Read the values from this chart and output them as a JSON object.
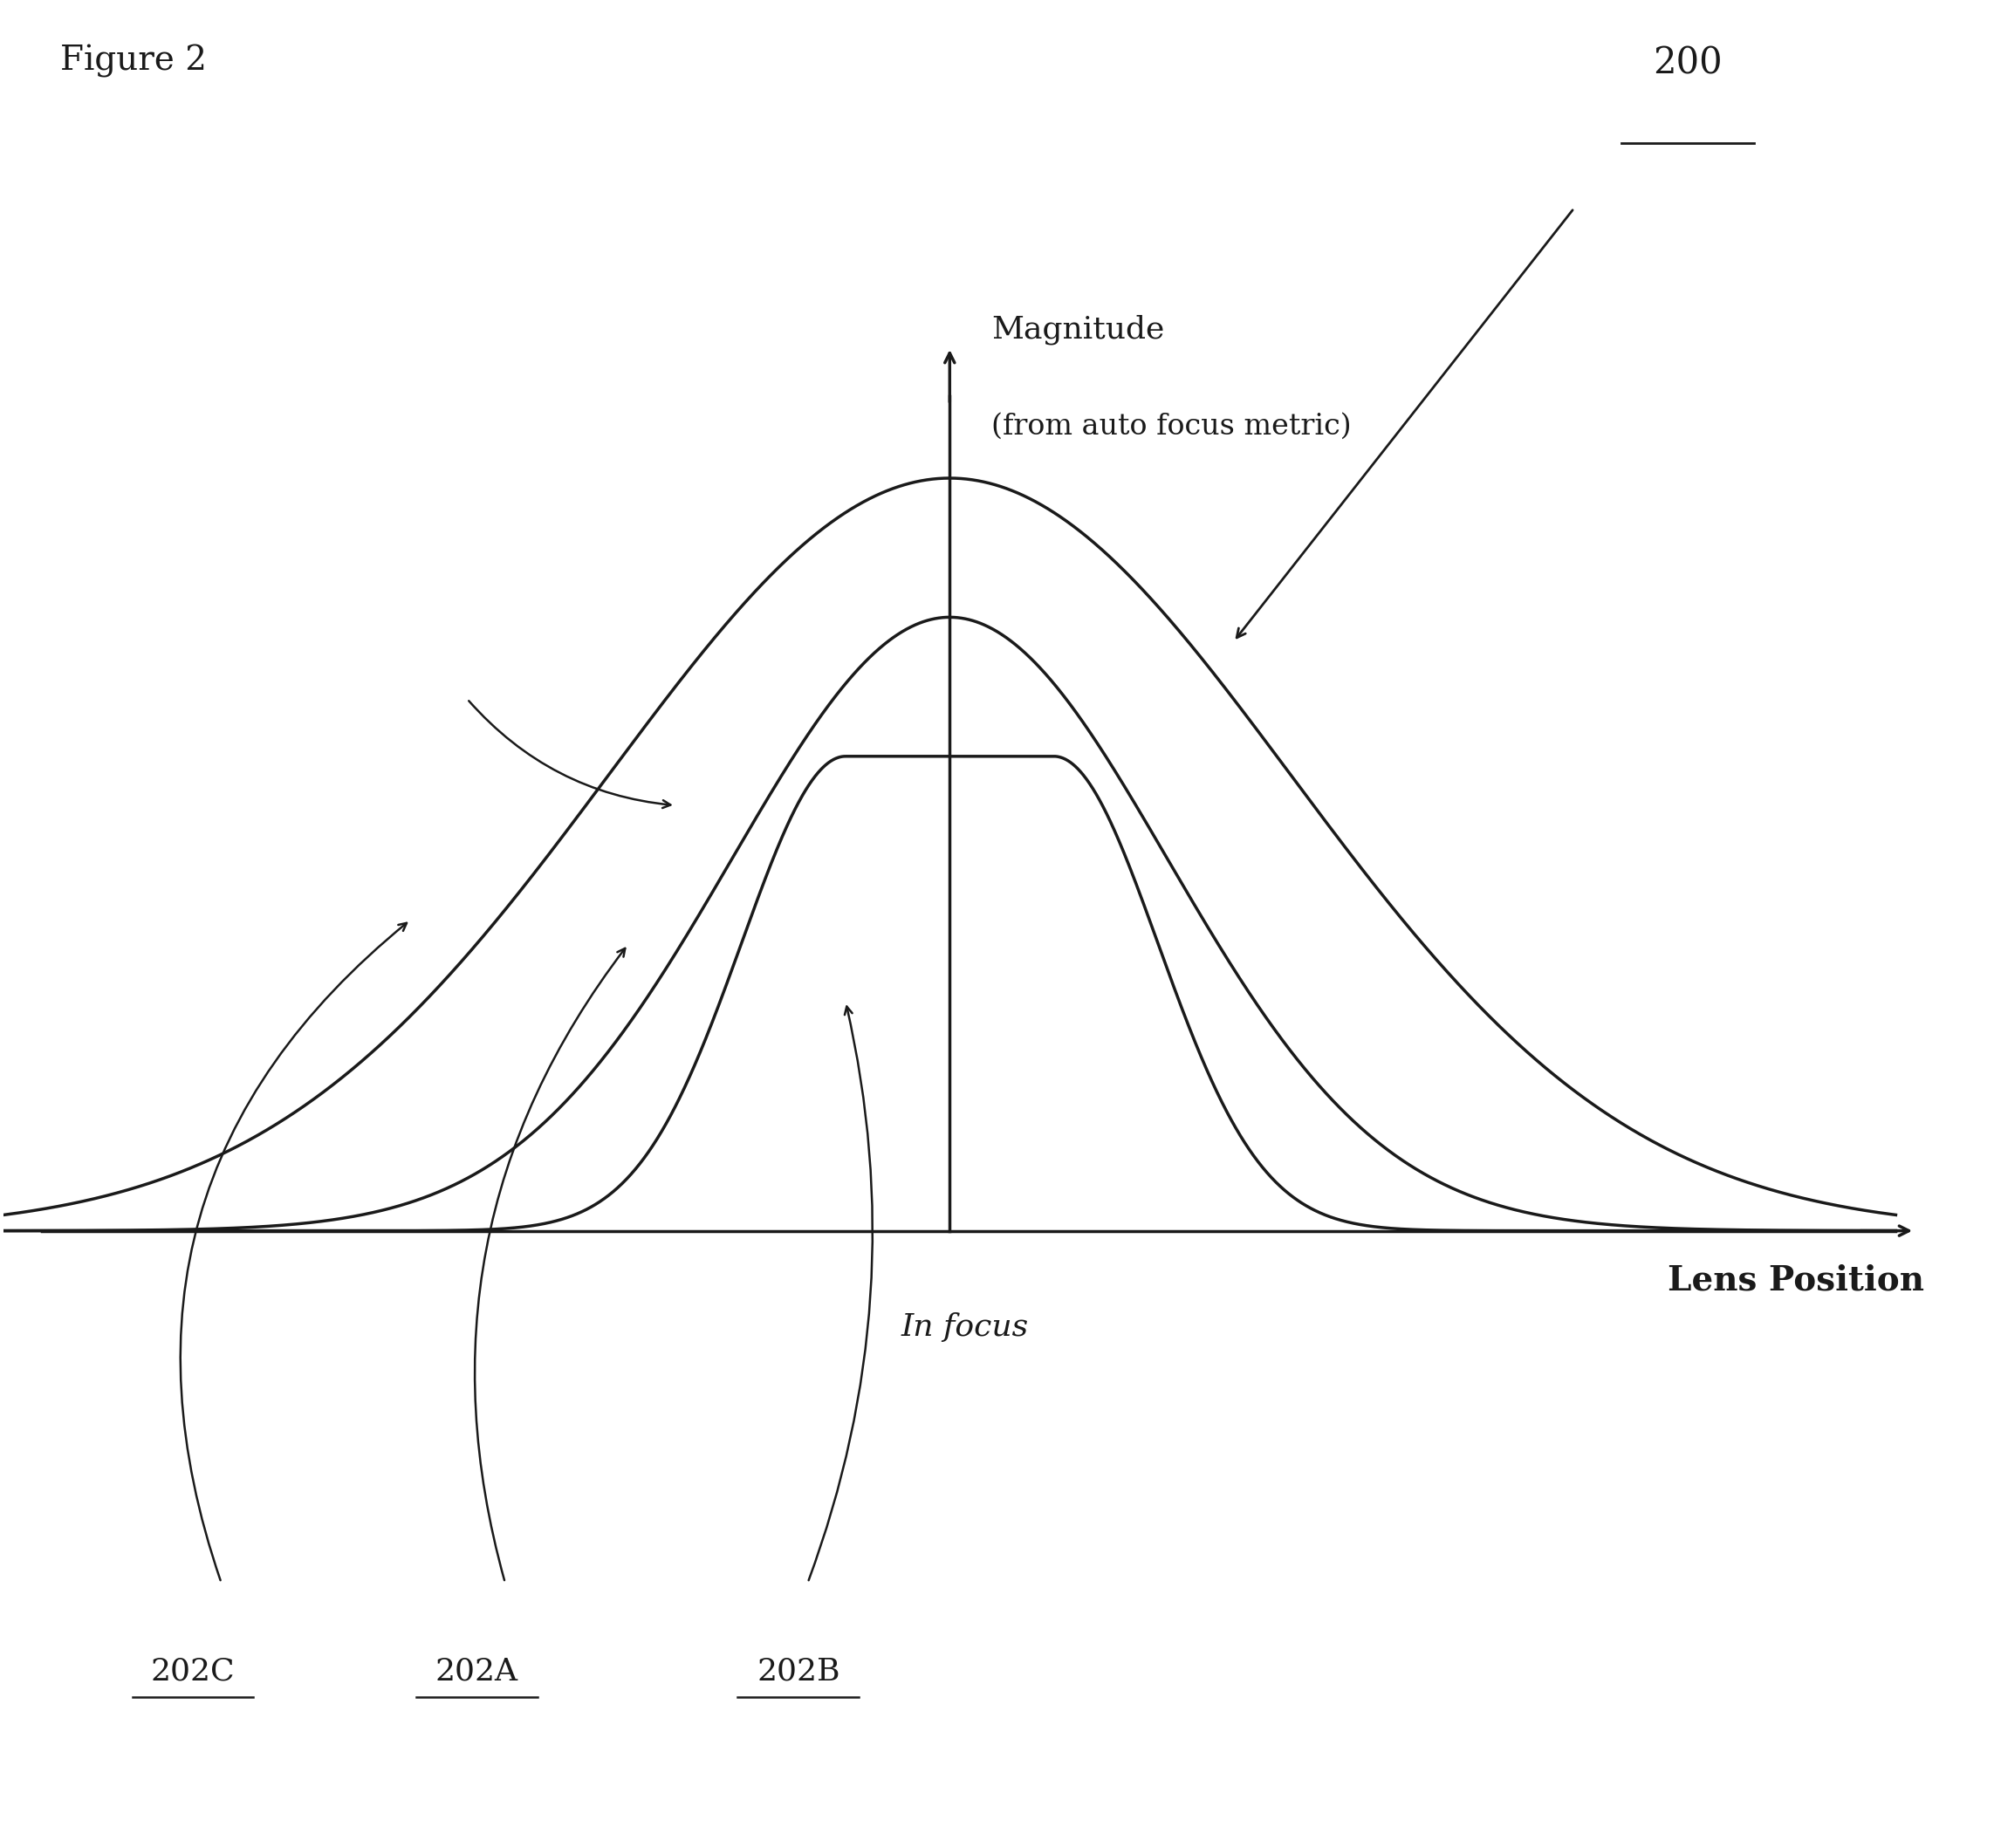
{
  "figure_label": "Figure 2",
  "ref_label": "200",
  "ylabel_line1": "Magnitude",
  "ylabel_line2": "(from auto focus metric)",
  "xlabel": "Lens Position",
  "infocus_label": "In focus",
  "curve_labels": [
    "202C",
    "202A",
    "202B"
  ],
  "background_color": "#ffffff",
  "curve_color": "#1a1a1a",
  "axis_color": "#1a1a1a",
  "text_color": "#1a1a1a",
  "xlim": [
    -5.0,
    5.5
  ],
  "ylim": [
    -0.75,
    1.5
  ]
}
